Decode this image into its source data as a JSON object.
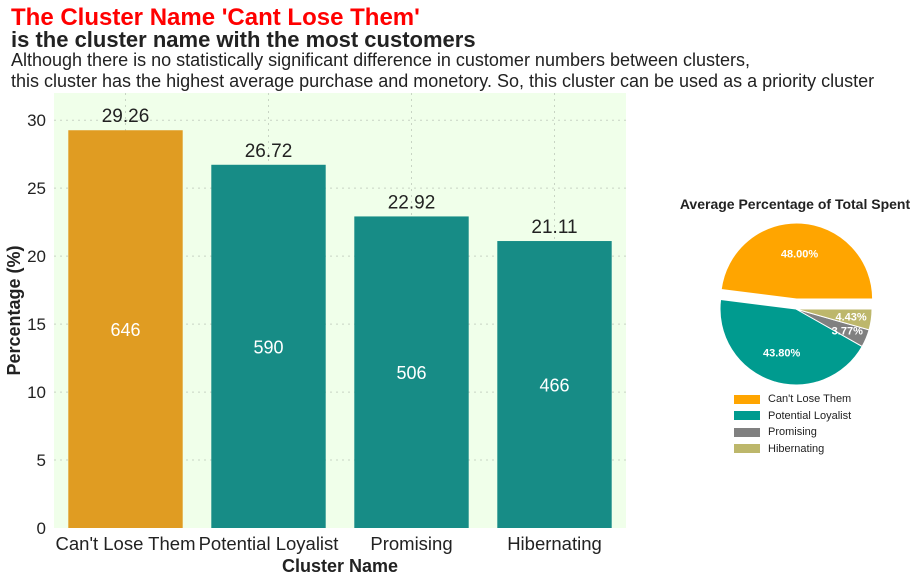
{
  "header": {
    "title": "The Cluster Name 'Cant Lose Them'",
    "subtitle": "is the cluster name with the most customers",
    "description_line1": "Although there is no statistically significant difference in customer numbers between clusters,",
    "description_line2": "this cluster has the highest average purchase and monetory. So, this cluster can be used as a priority cluster"
  },
  "chart_data": [
    {
      "type": "bar",
      "title": "",
      "xlabel": "Cluster Name",
      "ylabel": "Percentage (%)",
      "ylim": [
        0,
        32
      ],
      "yticks": [
        0,
        5,
        10,
        15,
        20,
        25,
        30
      ],
      "grid": true,
      "background": "#f0ffea",
      "categories": [
        "Can't Lose Them",
        "Potential Loyalist",
        "Promising",
        "Hibernating"
      ],
      "values": [
        29.26,
        26.72,
        22.92,
        21.11
      ],
      "value_labels": [
        "29.26",
        "26.72",
        "22.92",
        "21.11"
      ],
      "counts": [
        646,
        590,
        506,
        466
      ],
      "count_labels": [
        "646",
        "590",
        "506",
        "466"
      ],
      "colors": [
        "#e09c22",
        "#178c86",
        "#178c86",
        "#178c86"
      ]
    },
    {
      "type": "pie",
      "title": "Average Percentage of Total Spent",
      "labels": [
        "Can't Lose Them",
        "Potential Loyalist",
        "Promising",
        "Hibernating"
      ],
      "values": [
        48.0,
        43.8,
        3.77,
        4.43
      ],
      "value_labels": [
        "48.00%",
        "43.80%",
        "3.77%",
        "4.43%"
      ],
      "colors": [
        "#ffa500",
        "#009b8f",
        "#808080",
        "#bdb76b"
      ],
      "exploded": "Can't Lose Them",
      "legend": "bottom"
    }
  ]
}
